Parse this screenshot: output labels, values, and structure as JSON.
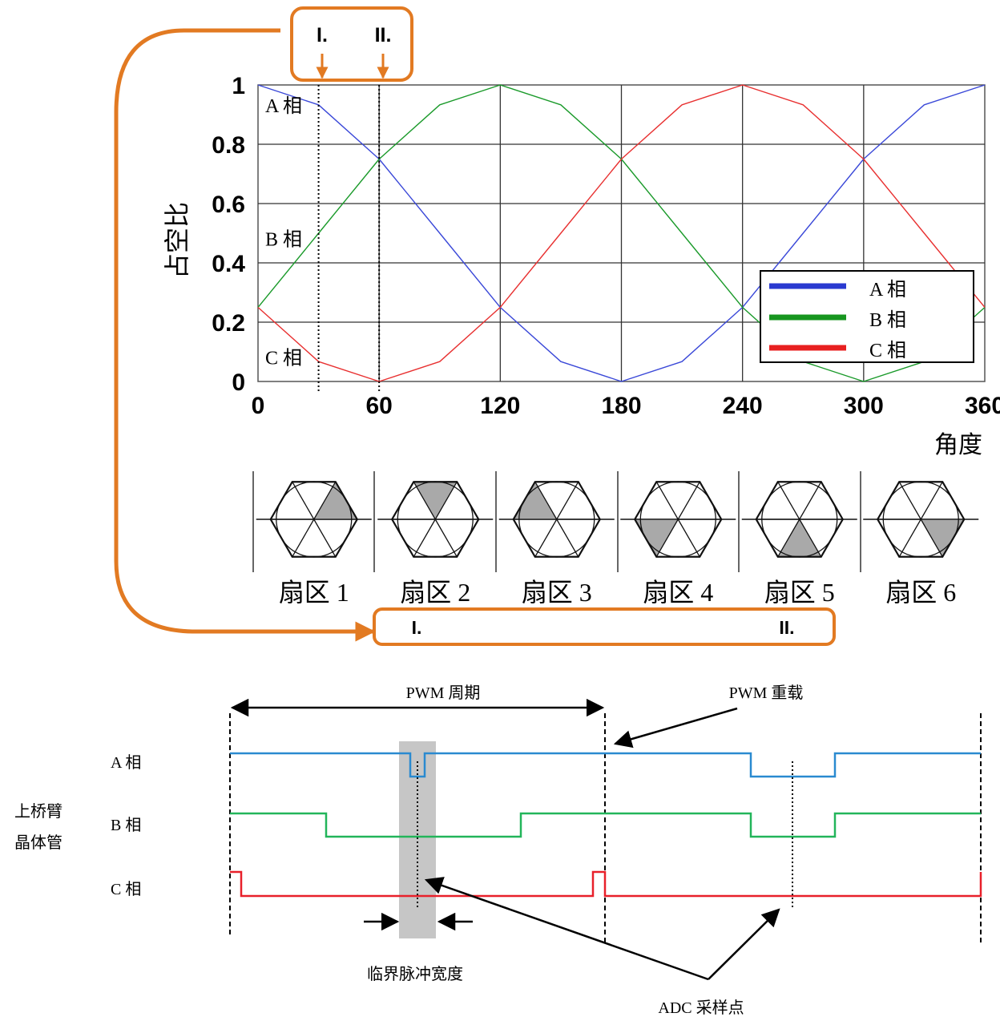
{
  "chart_data": {
    "type": "line",
    "ylabel": "占空比",
    "xlabel": "角度",
    "xlim": [
      0,
      360
    ],
    "ylim": [
      0,
      1
    ],
    "x_ticks": [
      "0",
      "60",
      "120",
      "180",
      "240",
      "300",
      "360"
    ],
    "y_ticks": [
      "0",
      "0.2",
      "0.4",
      "0.6",
      "0.8",
      "1"
    ],
    "grid": true,
    "legend_position": "bottom-right",
    "series": [
      {
        "name": "A 相",
        "color": "#3a48d8",
        "x": [
          0,
          30,
          60,
          90,
          120,
          150,
          180,
          210,
          240,
          270,
          300,
          330,
          360
        ],
        "values": [
          1.0,
          0.933,
          0.75,
          0.5,
          0.25,
          0.067,
          0.0,
          0.067,
          0.25,
          0.5,
          0.75,
          0.933,
          1.0
        ]
      },
      {
        "name": "B 相",
        "color": "#1a9a2a",
        "x": [
          0,
          30,
          60,
          90,
          120,
          150,
          180,
          210,
          240,
          270,
          300,
          330,
          360
        ],
        "values": [
          0.25,
          0.5,
          0.75,
          0.933,
          1.0,
          0.933,
          0.75,
          0.5,
          0.25,
          0.067,
          0.0,
          0.067,
          0.25
        ]
      },
      {
        "name": "C 相",
        "color": "#e83030",
        "x": [
          0,
          30,
          60,
          90,
          120,
          150,
          180,
          210,
          240,
          270,
          300,
          330,
          360
        ],
        "values": [
          0.25,
          0.067,
          0.0,
          0.067,
          0.25,
          0.5,
          0.75,
          0.933,
          1.0,
          0.933,
          0.75,
          0.5,
          0.25
        ]
      }
    ],
    "curve_labels": [
      "A 相",
      "B 相",
      "C 相"
    ],
    "markers": [
      {
        "label": "I.",
        "x": 30
      },
      {
        "label": "II.",
        "x": 60
      }
    ]
  },
  "legend": {
    "entries": [
      {
        "label": "A 相",
        "color": "#2a3ad0"
      },
      {
        "label": "B 相",
        "color": "#17961f"
      },
      {
        "label": "C 相",
        "color": "#e82020"
      }
    ]
  },
  "sectors": {
    "labels": [
      "扇区 1",
      "扇区 2",
      "扇区 3",
      "扇区 4",
      "扇区 5",
      "扇区 6"
    ],
    "shade_color": "#a9a9a9"
  },
  "callout": {
    "top_markers": [
      "I.",
      "II."
    ],
    "bottom_markers": [
      "I.",
      "II."
    ],
    "color": "#e27a22"
  },
  "timing": {
    "period_label": "PWM 周期",
    "reload_label": "PWM 重载",
    "row_labels": [
      "A 相",
      "B 相",
      "C 相"
    ],
    "group_label_line1": "上桥臂",
    "group_label_line2": "晶体管",
    "critical_width_label": "临界脉冲宽度",
    "adc_label": "ADC 采样点",
    "colors": {
      "A": "#2a8ad0",
      "B": "#22b55a",
      "C": "#e8202a"
    }
  }
}
